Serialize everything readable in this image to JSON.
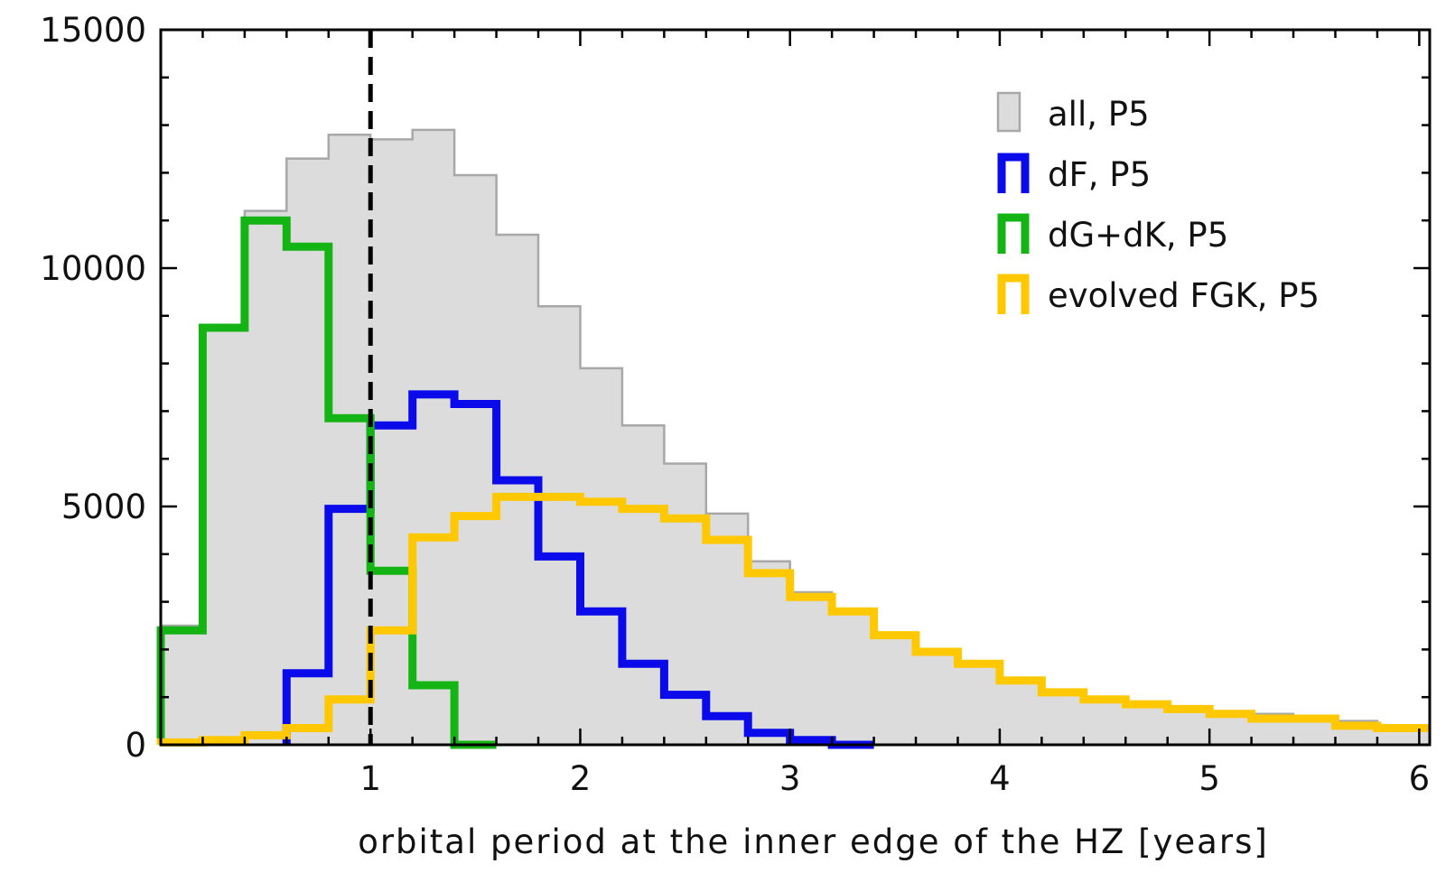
{
  "chart_data": {
    "type": "histogram",
    "xlabel": "orbital period at the inner edge of the HZ [years]",
    "ylabel": "",
    "xlim": [
      0.0,
      6.05
    ],
    "ylim": [
      0,
      15000
    ],
    "x_ticks": [
      1,
      2,
      3,
      4,
      5,
      6
    ],
    "y_ticks": [
      0,
      5000,
      10000,
      15000
    ],
    "x_minor_step": 0.2,
    "y_minor_step": 1000,
    "bin_width": 0.2,
    "reference_line": {
      "x": 1,
      "style": "dashed",
      "color": "#000000"
    },
    "legend": {
      "position": "top-right"
    },
    "series": [
      {
        "name": "all, P5",
        "style": "filled",
        "color": "#a8a8a8",
        "fill": "#dcdcdc",
        "bin_edges": [
          0.0,
          0.2,
          0.4,
          0.6,
          0.8,
          1.0,
          1.2,
          1.4,
          1.6,
          1.8,
          2.0,
          2.2,
          2.4,
          2.6,
          2.8,
          3.0,
          3.2,
          3.4,
          3.6,
          3.8,
          4.0,
          4.2,
          4.4,
          4.6,
          4.8,
          5.0,
          5.2,
          5.4,
          5.6,
          5.8,
          6.05
        ],
        "values": [
          2500,
          8700,
          11200,
          12300,
          12800,
          12700,
          12900,
          11950,
          10700,
          9200,
          7900,
          6700,
          5900,
          4850,
          3850,
          3200,
          2800,
          2300,
          1900,
          1650,
          1350,
          1150,
          1000,
          900,
          800,
          700,
          650,
          600,
          500,
          400
        ]
      },
      {
        "name": "dF, P5",
        "style": "step",
        "color": "#0a0aeb",
        "bin_edges": [
          0.6,
          0.8,
          1.0,
          1.2,
          1.4,
          1.6,
          1.8,
          2.0,
          2.2,
          2.4,
          2.6,
          2.8,
          3.0,
          3.2,
          3.4
        ],
        "values": [
          1500,
          4950,
          6700,
          7350,
          7150,
          5550,
          3950,
          2800,
          1700,
          1050,
          600,
          250,
          100,
          0
        ]
      },
      {
        "name": "dG+dK, P5",
        "style": "step",
        "color": "#14b414",
        "bin_edges": [
          0.0,
          0.2,
          0.4,
          0.6,
          0.8,
          1.0,
          1.2,
          1.4,
          1.6
        ],
        "values": [
          2400,
          8750,
          11000,
          10450,
          6850,
          3650,
          1250,
          0
        ]
      },
      {
        "name": "evolved FGK, P5",
        "style": "step",
        "color": "#ffc800",
        "bin_edges": [
          0.0,
          0.2,
          0.4,
          0.6,
          0.8,
          1.0,
          1.2,
          1.4,
          1.6,
          1.8,
          2.0,
          2.2,
          2.4,
          2.6,
          2.8,
          3.0,
          3.2,
          3.4,
          3.6,
          3.8,
          4.0,
          4.2,
          4.4,
          4.6,
          4.8,
          5.0,
          5.2,
          5.4,
          5.6,
          5.8,
          6.05
        ],
        "values": [
          50,
          100,
          200,
          350,
          950,
          2400,
          4350,
          4800,
          5200,
          5200,
          5100,
          4950,
          4750,
          4300,
          3600,
          3100,
          2800,
          2300,
          1950,
          1700,
          1350,
          1100,
          950,
          850,
          750,
          650,
          550,
          550,
          400,
          350
        ]
      }
    ]
  }
}
